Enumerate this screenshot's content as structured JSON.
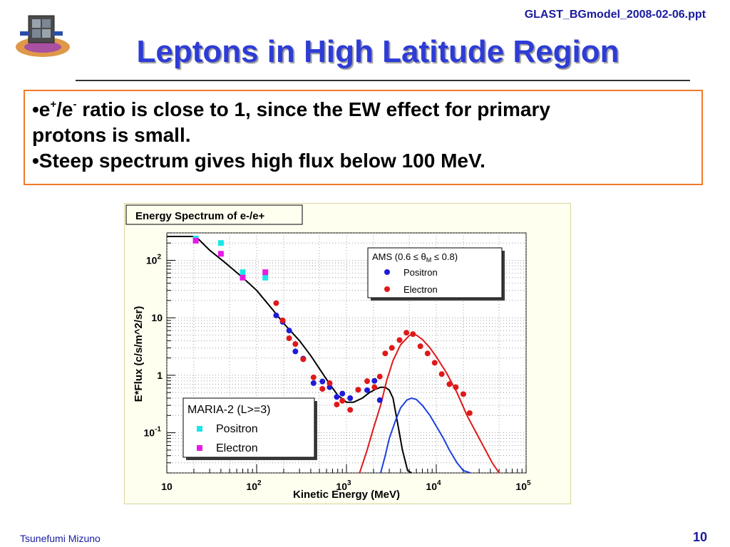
{
  "header": {
    "file_name": "GLAST_BGmodel_2008-02-06.ppt",
    "title": "Leptons in High Latitude Region"
  },
  "bullets": {
    "b1_prefix": "•e",
    "b1_sup1": "+",
    "b1_mid": "/e",
    "b1_sup2": "-",
    "b1_rest": " ratio is close to 1, since the EW effect for primary",
    "b1_line2": "protons is small.",
    "b2": "•Steep spectrum gives high flux below 100 MeV."
  },
  "footer": {
    "author": "Tsunefumi Mizuno",
    "page": "10"
  },
  "colors": {
    "title": "#2d3cd6",
    "box_border": "#ef7a28",
    "footer": "#1a1aa0",
    "chart_bg": "#fffff0",
    "ams_positron": "#1c1cd8",
    "ams_electron": "#e01818",
    "maria_positron": "#19e6e6",
    "maria_electron": "#e619e6",
    "model_total": "#000000",
    "model_positron": "#1b3fe0",
    "model_electron": "#e01818"
  },
  "chart_data": {
    "type": "scatter",
    "title": "Energy Spectrum of e-/e+",
    "xlabel": "Kinetic Energy (MeV)",
    "ylabel": "E*Flux (c/s/m^2/sr)",
    "xscale": "log",
    "yscale": "log",
    "xlim": [
      10,
      100000
    ],
    "ylim": [
      0.02,
      300
    ],
    "grid": true,
    "x_tick_labels": [
      {
        "value": 10,
        "base": "10",
        "exp": ""
      },
      {
        "value": 100,
        "base": "10",
        "exp": "2"
      },
      {
        "value": 1000,
        "base": "10",
        "exp": "3"
      },
      {
        "value": 10000,
        "base": "10",
        "exp": "4"
      },
      {
        "value": 100000,
        "base": "10",
        "exp": "5"
      }
    ],
    "y_tick_labels": [
      {
        "value": 0.1,
        "base": "10",
        "exp": "-1"
      },
      {
        "value": 1,
        "base": "1",
        "exp": ""
      },
      {
        "value": 10,
        "base": "10",
        "exp": ""
      },
      {
        "value": 100,
        "base": "10",
        "exp": "2"
      }
    ],
    "legends": [
      {
        "header_prefix": "AMS (0.6 ≤ θ",
        "header_sub": "M",
        "header_suffix": " ≤ 0.8)",
        "placement": "top-right",
        "entries": [
          {
            "label": "Positron",
            "marker": "circle",
            "color": "#1c1cd8"
          },
          {
            "label": "Electron",
            "marker": "circle",
            "color": "#e01818"
          }
        ]
      },
      {
        "header_prefix": "MARIA-2 (L>=3)",
        "header_sub": "",
        "header_suffix": "",
        "placement": "bottom-left",
        "entries": [
          {
            "label": "Positron",
            "marker": "square",
            "color": "#19e6e6"
          },
          {
            "label": "Electron",
            "marker": "square",
            "color": "#e619e6"
          }
        ]
      }
    ],
    "series": [
      {
        "name": "Positron",
        "source": "MARIA-2 (L>=3)",
        "marker": "square",
        "color": "#19e6e6",
        "x": [
          21,
          40,
          70,
          125
        ],
        "y": [
          240,
          200,
          62,
          50
        ]
      },
      {
        "name": "Electron",
        "source": "MARIA-2 (L>=3)",
        "marker": "square",
        "color": "#e619e6",
        "x": [
          21,
          40,
          70,
          125
        ],
        "y": [
          220,
          130,
          50,
          62
        ]
      },
      {
        "name": "Positron",
        "source": "AMS (0.6 ≤ θM ≤ 0.8)",
        "marker": "circle",
        "color": "#1c1cd8",
        "x": [
          165,
          195,
          230,
          270,
          330,
          430,
          540,
          650,
          780,
          900,
          1100,
          1350,
          1700,
          2050,
          2350
        ],
        "y": [
          11,
          8.5,
          6,
          2.6,
          1.95,
          0.73,
          0.78,
          0.62,
          0.42,
          0.48,
          0.4,
          0.56,
          0.55,
          0.8,
          0.37
        ]
      },
      {
        "name": "Electron",
        "source": "AMS (0.6 ≤ θM ≤ 0.8)",
        "marker": "circle",
        "color": "#e01818",
        "x": [
          165,
          195,
          230,
          270,
          330,
          430,
          540,
          650,
          780,
          900,
          1100,
          1350,
          1700,
          2050,
          2350,
          2700,
          3200,
          3900,
          4650,
          5500,
          6650,
          8000,
          9600,
          11500,
          14000,
          16500,
          20000,
          23500
        ],
        "y": [
          18,
          9,
          4.4,
          3.5,
          1.9,
          0.92,
          0.58,
          0.73,
          0.31,
          0.36,
          0.25,
          0.56,
          0.79,
          0.62,
          0.95,
          2.4,
          3.0,
          4.1,
          5.5,
          5.2,
          3.2,
          2.4,
          1.65,
          1.05,
          0.7,
          0.62,
          0.47,
          0.22
        ]
      },
      {
        "name": "",
        "type": "line",
        "color": "#000000",
        "x": [
          10,
          21,
          30,
          45,
          70,
          100,
          150,
          200,
          300,
          400,
          500,
          600,
          700,
          800,
          1000,
          1200,
          1500,
          1800,
          2100,
          2400,
          2700,
          3000,
          3300,
          3700,
          4200,
          4800,
          5300
        ],
        "y": [
          260,
          260,
          150,
          90,
          50,
          30,
          14,
          8,
          4,
          2.2,
          1.3,
          0.85,
          0.6,
          0.45,
          0.34,
          0.34,
          0.4,
          0.5,
          0.57,
          0.62,
          0.62,
          0.55,
          0.4,
          0.15,
          0.05,
          0.022,
          0.02
        ]
      },
      {
        "name": "",
        "type": "line",
        "color": "#e01818",
        "x": [
          1400,
          1700,
          2000,
          2400,
          2800,
          3300,
          4000,
          5000,
          5500,
          6000,
          7000,
          8500,
          10000,
          13000,
          17000,
          22000,
          30000,
          42000,
          50000
        ],
        "y": [
          0.02,
          0.05,
          0.12,
          0.3,
          0.8,
          1.8,
          3.4,
          4.9,
          5.2,
          5.0,
          4.2,
          3.0,
          2.1,
          1.1,
          0.5,
          0.2,
          0.08,
          0.03,
          0.02
        ]
      },
      {
        "name": "",
        "type": "line",
        "color": "#1b3fe0",
        "x": [
          2400,
          2700,
          3000,
          3500,
          4000,
          4700,
          5300,
          6000,
          7000,
          8500,
          10000,
          12000,
          14000,
          17000,
          20000,
          24000
        ],
        "y": [
          0.02,
          0.04,
          0.08,
          0.16,
          0.27,
          0.37,
          0.4,
          0.38,
          0.3,
          0.2,
          0.13,
          0.08,
          0.05,
          0.03,
          0.022,
          0.02
        ]
      }
    ]
  }
}
